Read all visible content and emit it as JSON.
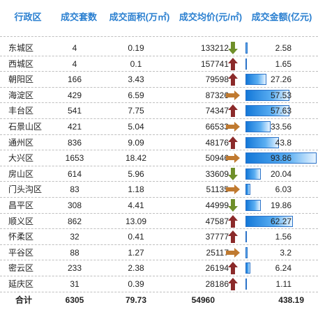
{
  "table": {
    "headers": [
      "行政区",
      "成交套数",
      "成交面积(万㎡)",
      "成交均价(元/㎡)",
      "成交金额(亿元)"
    ],
    "rows": [
      {
        "name": "东城区",
        "count": "4",
        "area": "0.19",
        "price": "133212",
        "trend": "down",
        "amount": "2.58"
      },
      {
        "name": "西城区",
        "count": "4",
        "area": "0.1",
        "price": "157741",
        "trend": "up",
        "amount": "1.65"
      },
      {
        "name": "朝阳区",
        "count": "166",
        "area": "3.43",
        "price": "79598",
        "trend": "up",
        "amount": "27.26"
      },
      {
        "name": "海淀区",
        "count": "429",
        "area": "6.59",
        "price": "87326",
        "trend": "right",
        "amount": "57.53"
      },
      {
        "name": "丰台区",
        "count": "541",
        "area": "7.75",
        "price": "74347",
        "trend": "up",
        "amount": "57.63"
      },
      {
        "name": "石景山区",
        "count": "421",
        "area": "5.04",
        "price": "66533",
        "trend": "right",
        "amount": "33.56"
      },
      {
        "name": "通州区",
        "count": "836",
        "area": "9.09",
        "price": "48176",
        "trend": "up",
        "amount": "43.8"
      },
      {
        "name": "大兴区",
        "count": "1653",
        "area": "18.42",
        "price": "50946",
        "trend": "right",
        "amount": "93.86"
      },
      {
        "name": "房山区",
        "count": "614",
        "area": "5.96",
        "price": "33609",
        "trend": "down",
        "amount": "20.04"
      },
      {
        "name": "门头沟区",
        "count": "83",
        "area": "1.18",
        "price": "51135",
        "trend": "right",
        "amount": "6.03"
      },
      {
        "name": "昌平区",
        "count": "308",
        "area": "4.41",
        "price": "44999",
        "trend": "down",
        "amount": "19.86"
      },
      {
        "name": "顺义区",
        "count": "862",
        "area": "13.09",
        "price": "47587",
        "trend": "up",
        "amount": "62.27"
      },
      {
        "name": "怀柔区",
        "count": "32",
        "area": "0.41",
        "price": "37777",
        "trend": "up",
        "amount": "1.56"
      },
      {
        "name": "平谷区",
        "count": "88",
        "area": "1.27",
        "price": "25117",
        "trend": "right",
        "amount": "3.2"
      },
      {
        "name": "密云区",
        "count": "233",
        "area": "2.38",
        "price": "26194",
        "trend": "up",
        "amount": "6.24"
      },
      {
        "name": "延庆区",
        "count": "31",
        "area": "0.39",
        "price": "28186",
        "trend": "up",
        "amount": "1.11"
      }
    ],
    "total": {
      "name": "合计",
      "count": "6305",
      "area": "79.73",
      "price": "54960",
      "amount": "438.19"
    },
    "colors": {
      "header": "#2a7fd0",
      "up": "#8b2a2a",
      "down": "#6f8f2a",
      "right": "#c07a30",
      "bar": "#1f86e6"
    }
  }
}
